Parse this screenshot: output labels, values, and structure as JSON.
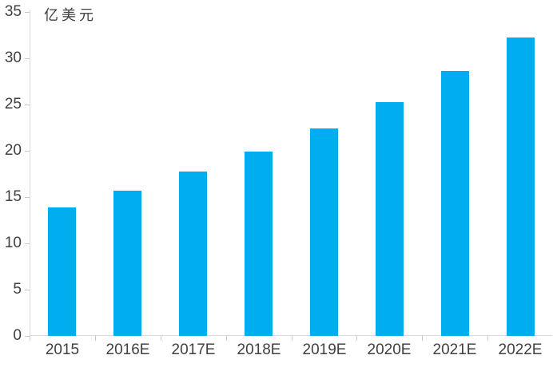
{
  "chart_data": {
    "type": "bar",
    "title": "",
    "unit_label": "亿美元",
    "categories": [
      "2015",
      "2016E",
      "2017E",
      "2018E",
      "2019E",
      "2020E",
      "2021E",
      "2022E"
    ],
    "values": [
      13.9,
      15.7,
      17.8,
      19.9,
      22.4,
      25.3,
      28.6,
      32.2
    ],
    "xlabel": "",
    "ylabel": "亿美元",
    "ylim": [
      0,
      35
    ],
    "yticks": [
      0,
      5,
      10,
      15,
      20,
      25,
      30,
      35
    ],
    "grid": false,
    "legend": "none",
    "bar_color": "#00AEEF",
    "axis_color": "#D9D9D9",
    "tick_color": "#C9C9C9",
    "tick_label_color": "#404040"
  }
}
